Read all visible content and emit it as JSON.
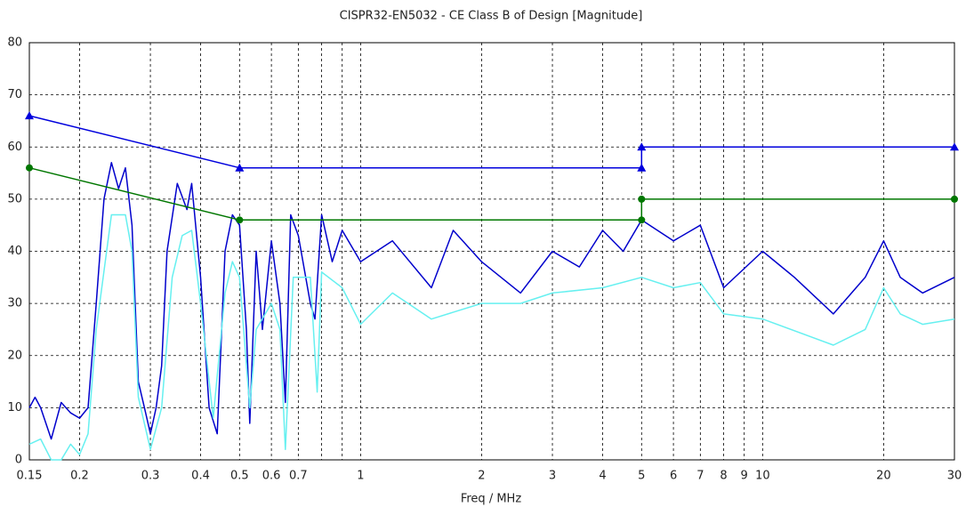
{
  "chart_data": {
    "type": "line",
    "title": "CISPR32-EN5032 - CE Class B of Design [Magnitude]",
    "x_label": "Freq / MHz",
    "x_scale": "log",
    "grid": true,
    "xlim": [
      0.15,
      30
    ],
    "ylim": [
      0,
      80
    ],
    "xticks": [
      0.15,
      0.2,
      0.3,
      0.4,
      0.5,
      0.6,
      0.7,
      1,
      2,
      3,
      4,
      5,
      6,
      7,
      8,
      9,
      10,
      20,
      30
    ],
    "minor_xticks": [
      0.8,
      0.9
    ],
    "yticks": [
      0,
      10,
      20,
      30,
      40,
      50,
      60,
      70,
      80
    ],
    "series": [
      {
        "color": "#0000cc",
        "marker": "none",
        "x": [
          0.15,
          0.155,
          0.16,
          0.17,
          0.18,
          0.19,
          0.2,
          0.21,
          0.22,
          0.23,
          0.24,
          0.25,
          0.26,
          0.27,
          0.28,
          0.29,
          0.3,
          0.31,
          0.32,
          0.33,
          0.35,
          0.37,
          0.38,
          0.4,
          0.42,
          0.44,
          0.46,
          0.48,
          0.5,
          0.52,
          0.53,
          0.55,
          0.57,
          0.6,
          0.63,
          0.65,
          0.67,
          0.7,
          0.75,
          0.77,
          0.8,
          0.85,
          0.9,
          1,
          1.2,
          1.5,
          1.7,
          2,
          2.5,
          3,
          3.5,
          4,
          4.5,
          5,
          6,
          7,
          8,
          10,
          12,
          15,
          18,
          20,
          22,
          25,
          30
        ],
        "values": [
          10,
          12,
          10,
          4,
          11,
          9,
          8,
          10,
          30,
          50,
          57,
          52,
          56,
          45,
          15,
          10,
          5,
          10,
          18,
          40,
          53,
          48,
          53,
          35,
          10,
          5,
          40,
          47,
          45,
          25,
          7,
          40,
          25,
          42,
          30,
          11,
          47,
          43,
          30,
          27,
          47,
          38,
          44,
          38,
          42,
          33,
          44,
          38,
          32,
          40,
          37,
          44,
          40,
          46,
          42,
          45,
          33,
          40,
          35,
          28,
          35,
          42,
          35,
          32,
          35
        ]
      },
      {
        "color": "#66f0f0",
        "marker": "none",
        "x": [
          0.15,
          0.16,
          0.17,
          0.18,
          0.19,
          0.2,
          0.21,
          0.22,
          0.24,
          0.26,
          0.27,
          0.28,
          0.3,
          0.32,
          0.34,
          0.36,
          0.38,
          0.4,
          0.43,
          0.46,
          0.48,
          0.5,
          0.53,
          0.55,
          0.6,
          0.63,
          0.65,
          0.68,
          0.75,
          0.78,
          0.8,
          0.9,
          1,
          1.2,
          1.5,
          2,
          2.5,
          3,
          4,
          5,
          6,
          7,
          8,
          10,
          15,
          18,
          20,
          22,
          25,
          30
        ],
        "values": [
          3,
          4,
          0,
          0,
          3,
          1,
          5,
          25,
          47,
          47,
          40,
          12,
          2,
          10,
          35,
          43,
          44,
          30,
          8,
          32,
          38,
          35,
          10,
          25,
          30,
          25,
          2,
          35,
          35,
          13,
          36,
          33,
          26,
          32,
          27,
          30,
          30,
          32,
          33,
          35,
          33,
          34,
          28,
          27,
          22,
          25,
          33,
          28,
          26,
          27
        ]
      },
      {
        "color": "#0000dd",
        "marker": "triangle",
        "x": [
          0.15,
          0.5,
          5,
          5,
          30
        ],
        "values": [
          66,
          56,
          56,
          60,
          60
        ]
      },
      {
        "color": "#007700",
        "marker": "circle",
        "x": [
          0.15,
          0.5,
          5,
          5,
          30
        ],
        "values": [
          56,
          46,
          46,
          50,
          50
        ]
      }
    ]
  }
}
